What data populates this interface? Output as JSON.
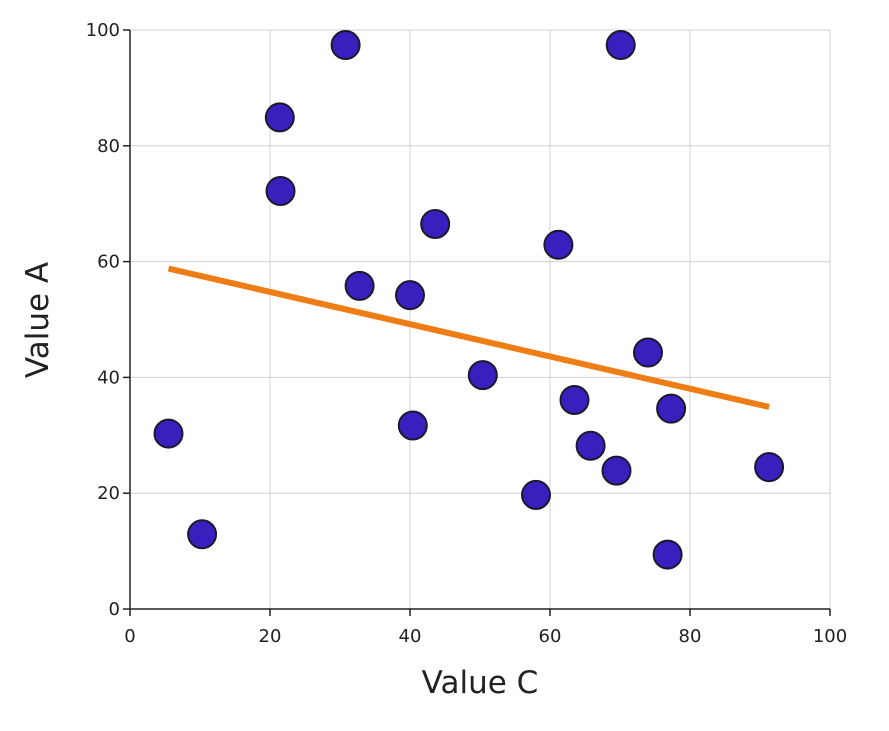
{
  "chart_data": {
    "type": "scatter",
    "title": "",
    "xlabel": "Value C",
    "ylabel": "Value A",
    "xlim": [
      0,
      100
    ],
    "ylim": [
      0,
      100
    ],
    "xticks": [
      "0",
      "20",
      "40",
      "60",
      "80",
      "100"
    ],
    "yticks": [
      "0",
      "20",
      "40",
      "60",
      "80",
      "100"
    ],
    "grid": true,
    "legend": "none",
    "point_color": "#3a1fbf",
    "trend_color": "#ef7d16",
    "series": [
      {
        "points": [
          {
            "x": 5.5,
            "y": 30.3
          },
          {
            "x": 10.3,
            "y": 12.9
          },
          {
            "x": 21.4,
            "y": 84.9
          },
          {
            "x": 21.5,
            "y": 72.2
          },
          {
            "x": 30.8,
            "y": 97.4
          },
          {
            "x": 32.8,
            "y": 55.8
          },
          {
            "x": 40.0,
            "y": 54.2
          },
          {
            "x": 40.4,
            "y": 31.7
          },
          {
            "x": 43.6,
            "y": 66.5
          },
          {
            "x": 50.4,
            "y": 40.4
          },
          {
            "x": 58.0,
            "y": 19.7
          },
          {
            "x": 61.2,
            "y": 62.9
          },
          {
            "x": 63.5,
            "y": 36.1
          },
          {
            "x": 65.8,
            "y": 28.2
          },
          {
            "x": 69.5,
            "y": 23.9
          },
          {
            "x": 70.1,
            "y": 97.4
          },
          {
            "x": 74.0,
            "y": 44.3
          },
          {
            "x": 76.8,
            "y": 9.4
          },
          {
            "x": 77.3,
            "y": 34.6
          },
          {
            "x": 91.3,
            "y": 24.5
          }
        ]
      }
    ],
    "trendline": {
      "x1": 5.5,
      "y1": 58.8,
      "x2": 91.3,
      "y2": 34.9
    }
  }
}
